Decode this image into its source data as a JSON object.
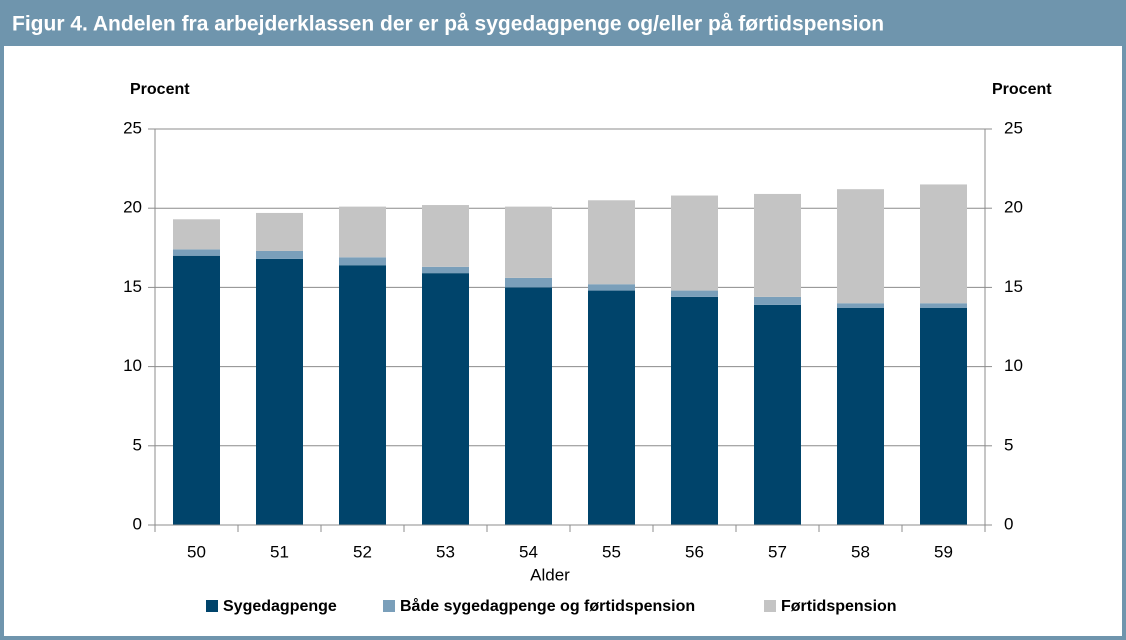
{
  "chart_data": {
    "type": "stacked_bar",
    "title": "Figur 4. Andelen fra arbejderklassen der er på sygedagpenge og/eller på førtidspension",
    "y_label": "Procent",
    "y2_label": "Procent",
    "x_label": "Alder",
    "categories": [
      "50",
      "51",
      "52",
      "53",
      "54",
      "55",
      "56",
      "57",
      "58",
      "59"
    ],
    "series": [
      {
        "name": "Sygedagpenge",
        "color": "#00446b",
        "values": [
          17.0,
          16.8,
          16.4,
          15.9,
          15.0,
          14.8,
          14.4,
          13.9,
          13.7,
          13.7
        ]
      },
      {
        "name": "Både sygedagpenge og førtidspension",
        "color": "#7a9fba",
        "values": [
          0.4,
          0.5,
          0.5,
          0.4,
          0.6,
          0.4,
          0.4,
          0.5,
          0.3,
          0.3
        ]
      },
      {
        "name": "Førtidspension",
        "color": "#c4c4c4",
        "values": [
          1.9,
          2.4,
          3.2,
          3.9,
          4.5,
          5.3,
          6.0,
          6.5,
          7.2,
          7.5
        ]
      }
    ],
    "ylim": [
      0,
      25
    ],
    "yticks": [
      0,
      5,
      10,
      15,
      20,
      25
    ],
    "y2lim": [
      0,
      25
    ],
    "y2ticks": [
      0,
      5,
      10,
      15,
      20,
      25
    ],
    "grid": true,
    "legend": "bottom"
  }
}
